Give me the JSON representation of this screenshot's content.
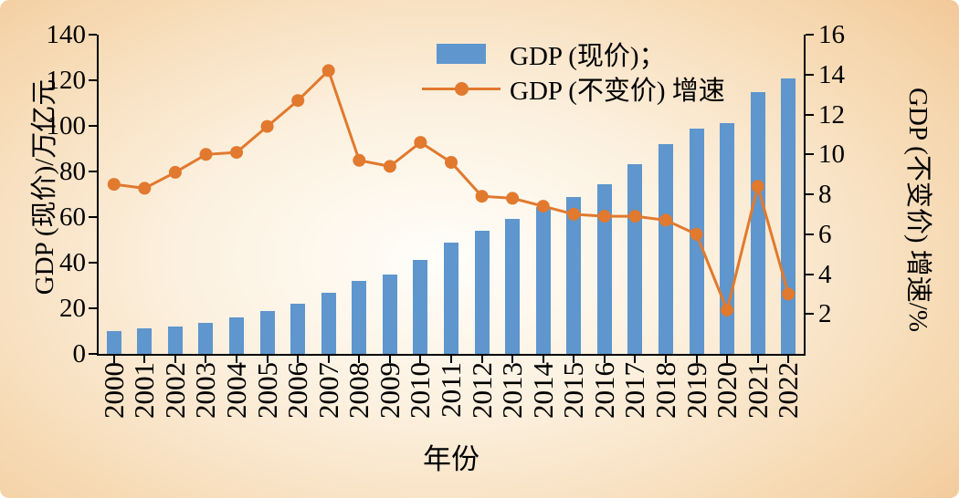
{
  "chart_data": {
    "type": "bar",
    "categories": [
      "2000",
      "2001",
      "2002",
      "2003",
      "2004",
      "2005",
      "2006",
      "2007",
      "2008",
      "2009",
      "2010",
      "2011",
      "2012",
      "2013",
      "2014",
      "2015",
      "2016",
      "2017",
      "2018",
      "2019",
      "2020",
      "2021",
      "2022"
    ],
    "series": [
      {
        "name": "GDP (现价)",
        "type": "bar",
        "axis": "left",
        "color": "#5e96cd",
        "values": [
          10.0,
          11.1,
          12.2,
          13.7,
          16.2,
          18.7,
          21.9,
          27.0,
          31.9,
          34.9,
          41.2,
          48.8,
          53.9,
          59.3,
          64.4,
          68.9,
          74.6,
          83.2,
          91.9,
          98.7,
          101.4,
          114.9,
          121.0
        ]
      },
      {
        "name": "GDP (不变价) 增速",
        "type": "line",
        "axis": "right",
        "color": "#e1792e",
        "values": [
          8.5,
          8.3,
          9.1,
          10.0,
          10.1,
          11.4,
          12.7,
          14.2,
          9.7,
          9.4,
          10.6,
          9.6,
          7.9,
          7.8,
          7.4,
          7.0,
          6.9,
          6.9,
          6.7,
          6.0,
          2.2,
          8.4,
          3.0
        ]
      }
    ],
    "left_axis": {
      "label": "GDP (现价)/万亿元",
      "min": 0,
      "max": 140,
      "ticks": [
        0,
        20,
        40,
        60,
        80,
        100,
        120,
        140
      ]
    },
    "right_axis": {
      "label": "GDP (不变价) 增速/%",
      "min": 0,
      "max": 16,
      "ticks": [
        2,
        4,
        6,
        8,
        10,
        12,
        14,
        16
      ]
    },
    "x_axis": {
      "label": "年份"
    },
    "legend": [
      "GDP (现价)；",
      "GDP (不变价) 增速"
    ],
    "style": {
      "bg_center": "#fffefa",
      "bg_mid": "#f5d5ab",
      "bg_edge": "#e4955c",
      "axis_color": "#000000"
    },
    "grid": false,
    "legend_position": "top-center-inside"
  }
}
